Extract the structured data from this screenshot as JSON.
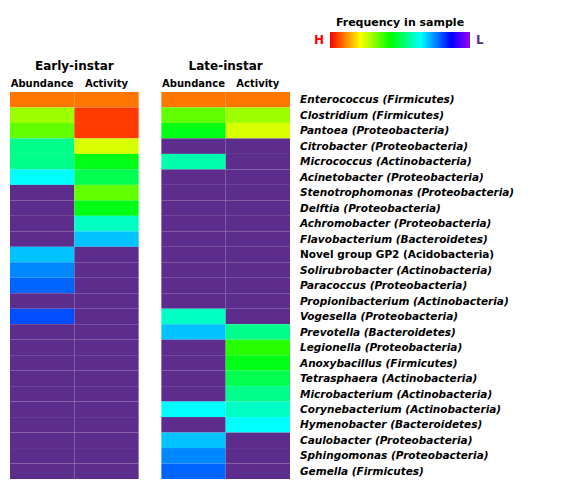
{
  "chart_data": {
    "type": "heatmap",
    "rows": [
      "Enterococcus (Firmicutes)",
      "Clostridium (Firmicutes)",
      "Pantoea (Proteobacteria)",
      "Citrobacter (Proteobacteria)",
      "Micrococcus (Actinobacteria)",
      "Acinetobacter (Proteobacteria)",
      "Stenotrophomonas (Proteobacteria)",
      "Delftia (Proteobacteria)",
      "Achromobacter (Proteobacteria)",
      "Flavobacterium (Bacteroidetes)",
      "Novel group GP2 (Acidobacteria)",
      "Solirubrobacter (Actinobacteria)",
      "Paracoccus (Proteobacteria)",
      "Propionibacterium (Actinobacteria)",
      "Vogesella (Proteobacteria)",
      "Prevotella (Bacteroidetes)",
      "Legionella (Proteobacteria)",
      "Anoxybacillus (Firmicutes)",
      "Tetrasphaera (Actinobacteria)",
      "Microbacterium (Actinobacteria)",
      "Corynebacterium (Actinobacteria)",
      "Hymenobacter (Bacteroidetes)",
      "Caulobacter (Proteobacteria)",
      "Sphingomonas (Proteobacteria)",
      "Gemella (Firmicutes)"
    ],
    "italic_rows": [
      0,
      1,
      2,
      3,
      4,
      5,
      6,
      7,
      8,
      9,
      11,
      12,
      13,
      14,
      15,
      16,
      17,
      18,
      19,
      20,
      21,
      22,
      23,
      24
    ],
    "column_groups": [
      {
        "name": "Early-instar",
        "columns": [
          "Abundance",
          "Activity"
        ]
      },
      {
        "name": "Late-instar",
        "columns": [
          "Abundance",
          "Activity"
        ]
      }
    ],
    "values": [
      [
        0.9,
        0.9,
        0.9,
        0.9
      ],
      [
        0.7,
        0.95,
        0.65,
        0.7
      ],
      [
        0.65,
        0.95,
        0.55,
        0.75
      ],
      [
        0.45,
        0.75,
        0.0,
        0.0
      ],
      [
        0.45,
        0.55,
        0.42,
        0.0
      ],
      [
        0.35,
        0.5,
        0.0,
        0.0
      ],
      [
        0.0,
        0.65,
        0.0,
        0.0
      ],
      [
        0.0,
        0.55,
        0.0,
        0.0
      ],
      [
        0.0,
        0.4,
        0.0,
        0.0
      ],
      [
        0.0,
        0.3,
        0.0,
        0.0
      ],
      [
        0.3,
        0.0,
        0.0,
        0.0
      ],
      [
        0.25,
        0.0,
        0.0,
        0.0
      ],
      [
        0.22,
        0.0,
        0.0,
        0.0
      ],
      [
        0.0,
        0.0,
        0.0,
        0.0
      ],
      [
        0.2,
        0.0,
        0.4,
        0.0
      ],
      [
        0.0,
        0.0,
        0.3,
        0.45
      ],
      [
        0.0,
        0.0,
        0.0,
        0.6
      ],
      [
        0.0,
        0.0,
        0.0,
        0.55
      ],
      [
        0.0,
        0.0,
        0.0,
        0.5
      ],
      [
        0.0,
        0.0,
        0.0,
        0.45
      ],
      [
        0.0,
        0.0,
        0.35,
        0.4
      ],
      [
        0.0,
        0.0,
        0.0,
        0.35
      ],
      [
        0.0,
        0.0,
        0.3,
        0.0
      ],
      [
        0.0,
        0.0,
        0.25,
        0.0
      ],
      [
        0.0,
        0.0,
        0.22,
        0.0
      ]
    ],
    "colorbar": {
      "label": "Frequency in sample",
      "range": [
        0,
        1
      ],
      "high_label": "H",
      "low_label": "L"
    }
  }
}
